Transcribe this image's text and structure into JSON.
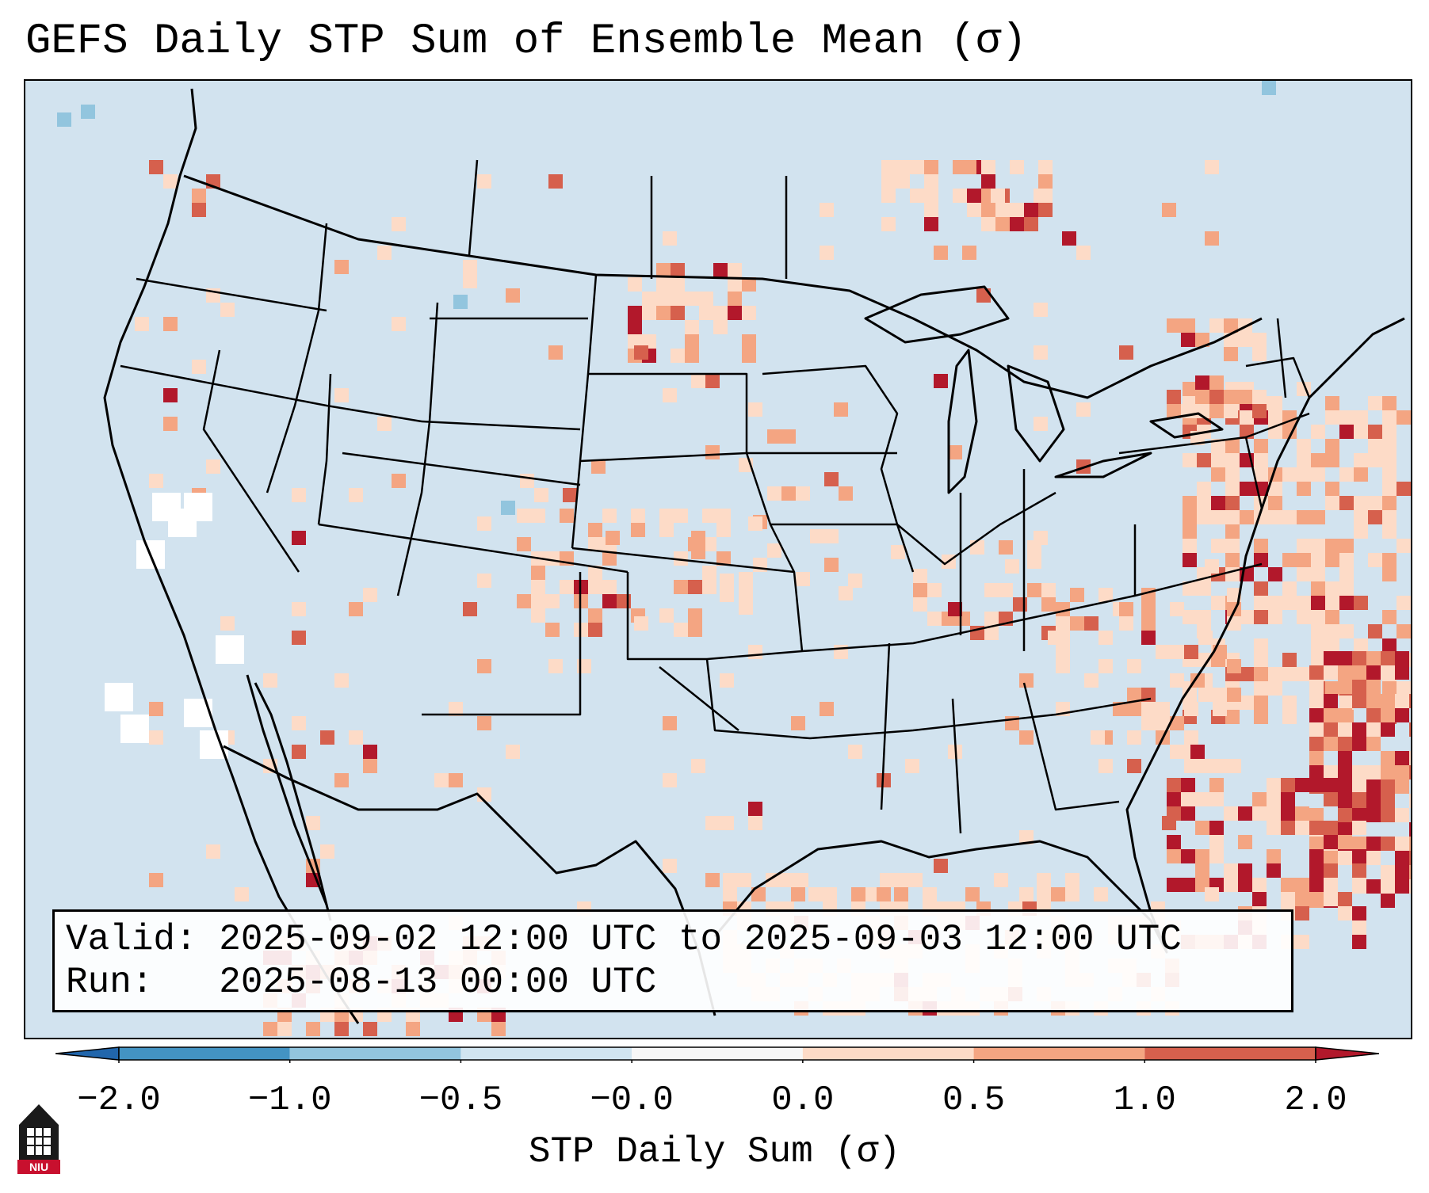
{
  "title": "GEFS Daily STP Sum of Ensemble Mean (σ)",
  "info": {
    "valid_label": "Valid:",
    "valid_range": "2025-09-02 12:00 UTC to 2025-09-03 12:00 UTC",
    "run_label": "Run:",
    "run_time": "2025-08-13 00:00 UTC"
  },
  "colorbar": {
    "label": "STP Daily Sum (σ)",
    "ticks": [
      "−2.0",
      "−1.0",
      "−0.5",
      "−0.0",
      "0.0",
      "0.5",
      "1.0",
      "2.0"
    ],
    "bins": [
      {
        "from": -2.0,
        "to": -1.0,
        "color": "#4393c3"
      },
      {
        "from": -1.0,
        "to": -0.5,
        "color": "#92c5de"
      },
      {
        "from": -0.5,
        "to": -0.0,
        "color": "#d1e5f0"
      },
      {
        "from": -0.0,
        "to": 0.0,
        "color": "#f7f7f7"
      },
      {
        "from": 0.0,
        "to": 0.5,
        "color": "#fddbc7"
      },
      {
        "from": 0.5,
        "to": 1.0,
        "color": "#f4a582"
      },
      {
        "from": 1.0,
        "to": 2.0,
        "color": "#d6604d"
      }
    ],
    "under_color": "#2166ac",
    "over_color": "#b2182b"
  },
  "map": {
    "background_color": "#d2e3ef",
    "field_colors": {
      "light": "#fddbc7",
      "medium": "#f4a582",
      "strong": "#d6604d",
      "extreme": "#b2182b",
      "near_zero": "#ffffff",
      "negative": "#92c5de"
    }
  },
  "logo": {
    "text": "NIU",
    "icon": "university-logo-icon"
  }
}
